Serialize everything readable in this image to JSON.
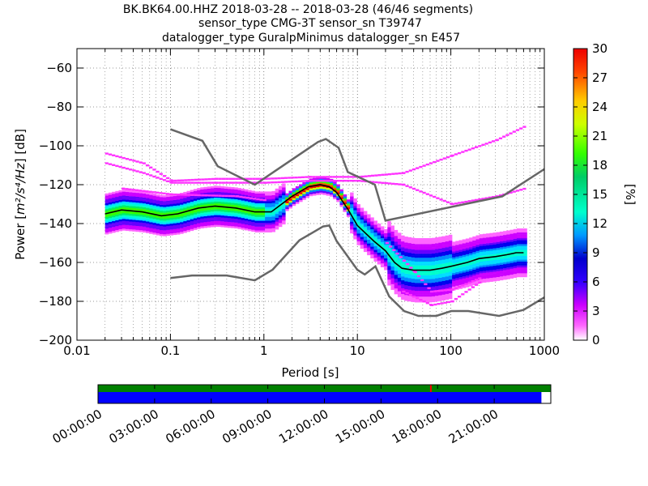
{
  "title_lines": [
    "BK.BK64.00.HHZ   2018-03-28 -- 2018-03-28  (46/46 segments)",
    "sensor_type CMG-3T sensor_sn T39747",
    "datalogger_type GuralpMinimus datalogger_sn E457"
  ],
  "chart_data": {
    "type": "heatmap",
    "xlabel": "Period [s]",
    "ylabel_prefix": "Power [",
    "ylabel_math": "m²/s⁴/Hz",
    "ylabel_suffix": "] [dB]",
    "xscale": "log",
    "xlim": [
      0.01,
      1000
    ],
    "ylim": [
      -200,
      -50
    ],
    "x_ticks": [
      0.01,
      0.1,
      1,
      10,
      100,
      1000
    ],
    "x_tick_labels": [
      "0.01",
      "0.1",
      "1",
      "10",
      "100",
      "1000"
    ],
    "y_ticks": [
      -200,
      -180,
      -160,
      -140,
      -120,
      -100,
      -80,
      -60
    ],
    "y_tick_labels": [
      "−200",
      "−180",
      "−160",
      "−140",
      "−120",
      "−100",
      "−80",
      "−60"
    ],
    "grid": true,
    "colorbar": {
      "label": "[%]",
      "range": [
        0,
        30
      ],
      "ticks": [
        0,
        3,
        6,
        9,
        12,
        15,
        18,
        21,
        24,
        27,
        30
      ],
      "tick_labels": [
        "0",
        "3",
        "6",
        "9",
        "12",
        "15",
        "18",
        "21",
        "24",
        "27",
        "30"
      ]
    },
    "noise_model_high": {
      "x": [
        0.1,
        0.22,
        0.32,
        0.8,
        3.8,
        4.6,
        6.3,
        7.9,
        15.4,
        20,
        354.8,
        1000
      ],
      "y": [
        -91.5,
        -97.4,
        -110.5,
        -120,
        -98,
        -96.5,
        -101,
        -113.5,
        -120,
        -138.5,
        -126,
        -112
      ]
    },
    "noise_model_low": {
      "x": [
        0.1,
        0.17,
        0.4,
        0.8,
        1.24,
        2.4,
        4.3,
        5,
        6,
        10,
        12,
        15.6,
        21.9,
        31.6,
        45,
        70,
        101,
        154,
        328,
        600,
        1000
      ],
      "y": [
        -168,
        -166.7,
        -166.7,
        -169.2,
        -163.7,
        -148.6,
        -141.5,
        -141,
        -149,
        -163.8,
        -166.2,
        -162,
        -177.5,
        -185,
        -187.5,
        -187.5,
        -185,
        -185,
        -187.5,
        -184.4,
        -178
      ]
    },
    "median_psd": {
      "x": [
        0.02,
        0.03,
        0.05,
        0.08,
        0.12,
        0.2,
        0.3,
        0.5,
        0.8,
        1.2,
        2,
        3,
        4,
        5,
        6,
        8,
        10,
        15,
        20,
        25,
        30,
        40,
        60,
        80,
        100,
        150,
        200,
        300,
        400,
        500,
        600
      ],
      "y": [
        -135,
        -133,
        -134,
        -136,
        -135,
        -132,
        -131,
        -132,
        -134,
        -134,
        -126,
        -121,
        -120,
        -121,
        -124,
        -133,
        -141,
        -149,
        -154,
        -160,
        -163,
        -164,
        -164,
        -163,
        -162,
        -160,
        -158,
        -157,
        -156,
        -155,
        -155
      ]
    },
    "timeline": {
      "tick_labels": [
        "00:00:00",
        "03:00:00",
        "06:00:00",
        "09:00:00",
        "12:00:00",
        "15:00:00",
        "18:00:00",
        "21:00:00"
      ],
      "range_hours": [
        0,
        24
      ],
      "data_coverage_hours": [
        0,
        23.5
      ],
      "psd_coverage_hours": [
        0,
        23.5
      ],
      "gap_marker_hours": 17.6
    },
    "colors": {
      "coverage_top": "#008000",
      "coverage_bottom": "#0000ff",
      "noise_model": "#666666",
      "gap_marker": "#ff0000"
    }
  }
}
